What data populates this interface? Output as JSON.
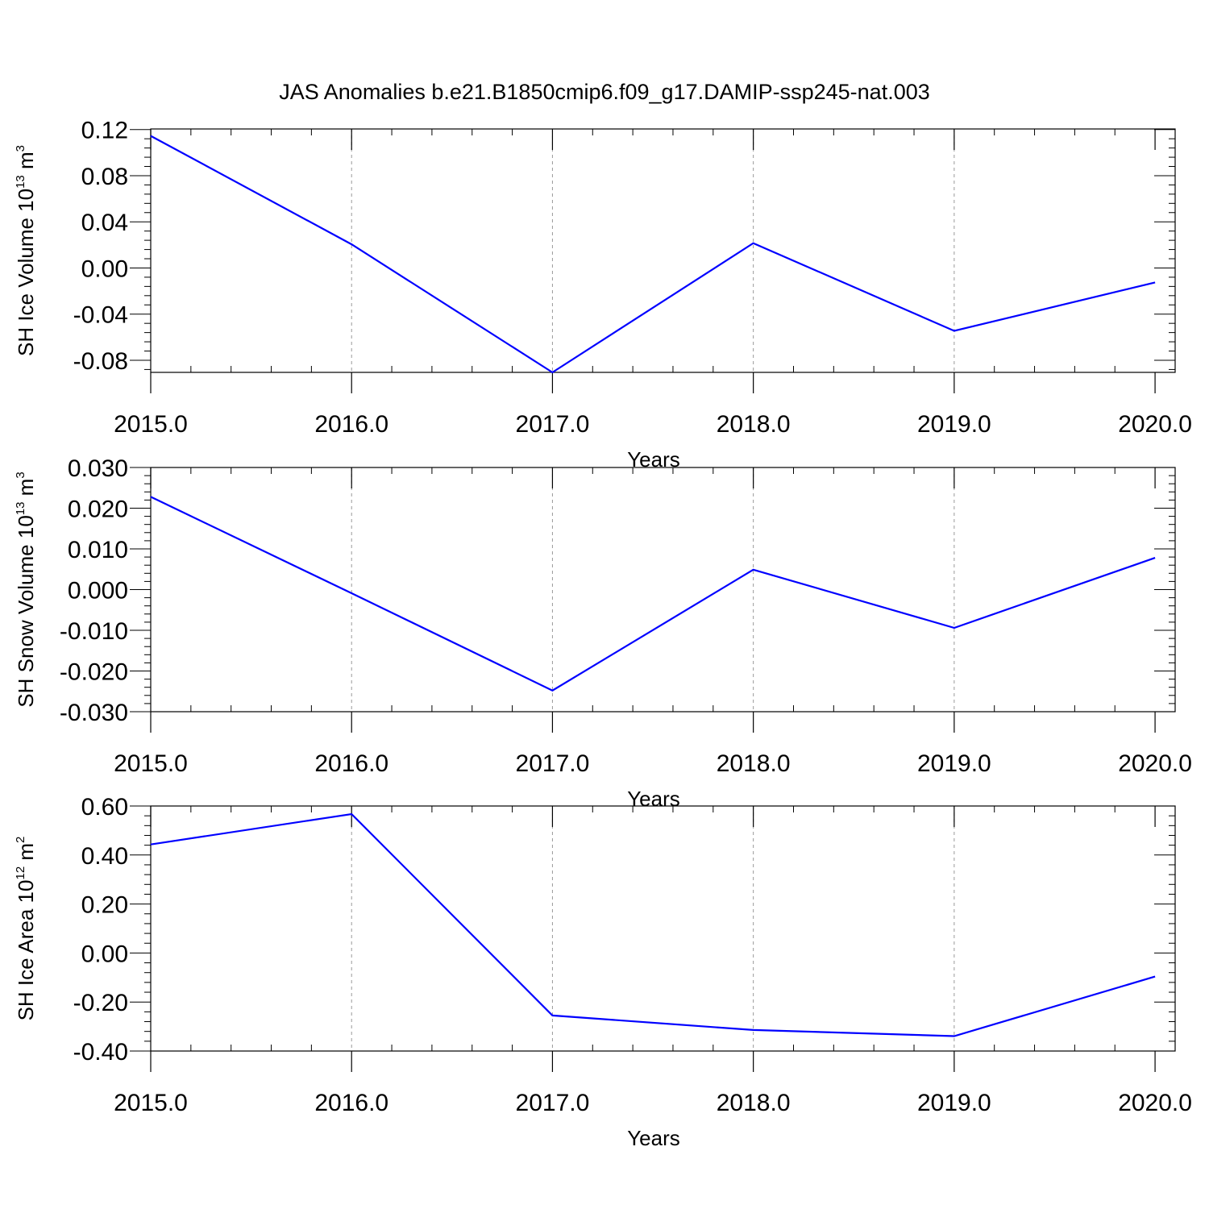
{
  "title": "JAS Anomalies b.e21.B1850cmip6.f09_g17.DAMIP-ssp245-nat.003",
  "chart_data": [
    {
      "type": "line",
      "xlabel": "Years",
      "ylabel": {
        "main": "SH Ice Volume 10",
        "sup": "13",
        "unit": " m",
        "unit_sup": "3"
      },
      "x_ticks": [
        2015,
        2016,
        2017,
        2018,
        2019,
        2020
      ],
      "x_tick_labels": [
        "2015.0",
        "2016.0",
        "2017.0",
        "2018.0",
        "2019.0",
        "2020.0"
      ],
      "y_ticks": [
        0.12,
        0.08,
        0.04,
        0.0,
        -0.04,
        -0.08
      ],
      "y_tick_labels": [
        "0.12",
        "0.08",
        "0.04",
        "0.00",
        "-0.04",
        "-0.08"
      ],
      "xlim": [
        2015,
        2020.1
      ],
      "ylim": [
        -0.0905,
        0.1205
      ],
      "grid": "vertical-dashed",
      "color": "#0000ff",
      "series": [
        {
          "x": [
            2015,
            2016,
            2017,
            2018,
            2019,
            2020
          ],
          "y": [
            0.1145,
            0.0205,
            -0.0905,
            0.0215,
            -0.0545,
            -0.0125
          ]
        }
      ]
    },
    {
      "type": "line",
      "xlabel": "Years",
      "ylabel": {
        "main": "SH Snow Volume 10",
        "sup": "13",
        "unit": " m",
        "unit_sup": "3"
      },
      "x_ticks": [
        2015,
        2016,
        2017,
        2018,
        2019,
        2020
      ],
      "x_tick_labels": [
        "2015.0",
        "2016.0",
        "2017.0",
        "2018.0",
        "2019.0",
        "2020.0"
      ],
      "y_ticks": [
        0.03,
        0.02,
        0.01,
        0.0,
        -0.01,
        -0.02,
        -0.03
      ],
      "y_tick_labels": [
        "0.030",
        "0.020",
        "0.010",
        "0.000",
        "-0.010",
        "-0.020",
        "-0.030"
      ],
      "xlim": [
        2015,
        2020.1
      ],
      "ylim": [
        -0.03,
        0.03
      ],
      "grid": "vertical-dashed",
      "color": "#0000ff",
      "series": [
        {
          "x": [
            2015,
            2016,
            2017,
            2018,
            2019,
            2020
          ],
          "y": [
            0.0228,
            -0.0009,
            -0.0248,
            0.0049,
            -0.0094,
            0.0078
          ]
        }
      ]
    },
    {
      "type": "line",
      "xlabel": "Years",
      "ylabel": {
        "main": "SH Ice Area 10",
        "sup": "12",
        "unit": " m",
        "unit_sup": "2"
      },
      "x_ticks": [
        2015,
        2016,
        2017,
        2018,
        2019,
        2020
      ],
      "x_tick_labels": [
        "2015.0",
        "2016.0",
        "2017.0",
        "2018.0",
        "2019.0",
        "2020.0"
      ],
      "y_ticks": [
        0.6,
        0.4,
        0.2,
        0.0,
        -0.2,
        -0.4
      ],
      "y_tick_labels": [
        "0.60",
        "0.40",
        "0.20",
        "0.00",
        "-0.20",
        "-0.40"
      ],
      "xlim": [
        2015,
        2020.1
      ],
      "ylim": [
        -0.4,
        0.6
      ],
      "grid": "vertical-dashed",
      "color": "#0000ff",
      "series": [
        {
          "x": [
            2015,
            2016,
            2017,
            2018,
            2019,
            2020
          ],
          "y": [
            0.443,
            0.567,
            -0.255,
            -0.314,
            -0.339,
            -0.096
          ]
        }
      ]
    }
  ]
}
